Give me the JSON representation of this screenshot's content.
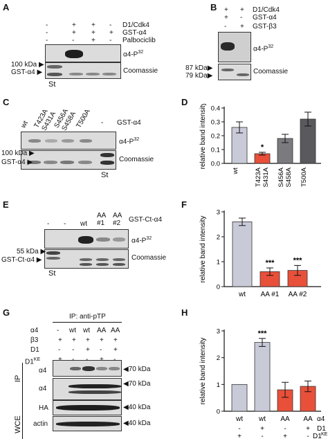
{
  "panels": {
    "A": {
      "letter": "A",
      "rows": [
        {
          "label": "D1/Cdk4",
          "marks": [
            "-",
            "+",
            "+",
            "-"
          ]
        },
        {
          "label": "GST-α4",
          "marks": [
            "-",
            "+",
            "+",
            "+"
          ]
        },
        {
          "label": "Palbociclib",
          "marks": [
            "-",
            "-",
            "+",
            "-"
          ]
        }
      ],
      "blot1_label": "α4-P",
      "blot1_sup": "32",
      "blot2_label": "Coomassie",
      "marker1": "100 kDa",
      "marker2": "GST-α4",
      "st": "St"
    },
    "B": {
      "letter": "B",
      "rows": [
        {
          "label": "D1/Cdk4",
          "marks": [
            "+",
            "+"
          ]
        },
        {
          "label": "GST-α4",
          "marks": [
            "+",
            "-"
          ]
        },
        {
          "label": "GST-β3",
          "marks": [
            "-",
            "+"
          ]
        }
      ],
      "blot1_label": "α4-P",
      "blot1_sup": "32",
      "blot2_label": "Coomassie",
      "marker1": "87 kDa",
      "marker2": "79 kDa"
    },
    "C": {
      "letter": "C",
      "lanes": [
        "wt",
        "T423A",
        "S431A",
        "S456A",
        "S458A",
        "T500A"
      ],
      "dash": "-",
      "row_label": "GST-α4",
      "blot1_label": "α4-P",
      "blot1_sup": "32",
      "blot2_label": "Coomassie",
      "marker1": "100 kDa",
      "marker2": "GST-α4",
      "st": "St"
    },
    "D": {
      "letter": "D",
      "significance": [
        "",
        "*",
        "",
        ""
      ]
    },
    "E": {
      "letter": "E",
      "lanes": [
        "-",
        "-",
        "wt",
        "AA",
        "AA"
      ],
      "lane_sub": [
        "",
        "",
        "",
        "#1",
        "#2"
      ],
      "row_label": "GST-Ct-α4",
      "blot1_label": "α4-P",
      "blot1_sup": "32",
      "blot2_label": "Coomassie",
      "marker1": "55 kDa",
      "marker2": "GST-Ct-α4",
      "st": "St"
    },
    "F": {
      "letter": "F",
      "significance": [
        "",
        "***",
        "***"
      ]
    },
    "G": {
      "letter": "G",
      "ip_title": "IP: anti-pTP",
      "rows": [
        {
          "label": "α4",
          "marks": [
            "-",
            "wt",
            "wt",
            "AA",
            "AA"
          ]
        },
        {
          "label": "β3",
          "marks": [
            "+",
            "+",
            "+",
            "+",
            "+"
          ]
        },
        {
          "label": "D1",
          "marks": [
            "-",
            "-",
            "+",
            "-",
            "+"
          ]
        },
        {
          "label": "D1KE",
          "marks": [
            "+",
            "-",
            "-",
            "+",
            "-"
          ]
        }
      ],
      "ip_label": "IP",
      "wce_label": "WCE",
      "blots": [
        {
          "label": "α4",
          "marker": "70 kDa"
        },
        {
          "label": "α4",
          "marker": "70 kDa"
        },
        {
          "label": "HA",
          "marker": "40 kDa"
        },
        {
          "label": "actin",
          "marker": "40 kDa"
        }
      ]
    },
    "H": {
      "letter": "H",
      "significance": [
        "",
        "***",
        "",
        ""
      ],
      "rows": [
        {
          "label": "α4",
          "marks": [
            "wt",
            "wt",
            "AA",
            "AA"
          ]
        },
        {
          "label": "D1",
          "marks": [
            "-",
            "+",
            "-",
            "+"
          ]
        },
        {
          "label": "D1KE",
          "marks": [
            "+",
            "-",
            "+",
            "-"
          ]
        }
      ]
    }
  },
  "chart_data": [
    {
      "panel": "D",
      "type": "bar",
      "categories": [
        "wt",
        "T423A S431A",
        "S456A S458A",
        "T500A"
      ],
      "values": [
        0.26,
        0.07,
        0.18,
        0.32
      ],
      "errors": [
        0.04,
        0.01,
        0.03,
        0.05
      ],
      "colors": [
        "#c9cad8",
        "#e8503a",
        "#7a7a7f",
        "#5a5a5e"
      ],
      "ylabel": "relative band intensity",
      "ylim": [
        0,
        0.4
      ],
      "yticks": [
        "0.0",
        "0.1",
        "0.2",
        "0.3",
        "0.4"
      ]
    },
    {
      "panel": "F",
      "type": "bar",
      "categories": [
        "wt",
        "AA #1",
        "AA #2"
      ],
      "values": [
        2.6,
        0.6,
        0.65
      ],
      "errors": [
        0.15,
        0.15,
        0.2
      ],
      "colors": [
        "#c9cad8",
        "#e8503a",
        "#e8503a"
      ],
      "ylabel": "relative band intensity",
      "ylim": [
        0,
        3
      ],
      "yticks": [
        "0",
        "1",
        "2",
        "3"
      ]
    },
    {
      "panel": "H",
      "type": "bar",
      "categories": [
        "wt",
        "wt",
        "AA",
        "AA"
      ],
      "values": [
        1.0,
        2.57,
        0.8,
        0.93
      ],
      "errors": [
        0,
        0.15,
        0.28,
        0.2
      ],
      "colors": [
        "#c9cad8",
        "#c9cad8",
        "#e8503a",
        "#e8503a"
      ],
      "ylabel": "relative band intensity",
      "ylim": [
        0,
        3
      ],
      "yticks": [
        "0",
        "1",
        "2",
        "3"
      ]
    }
  ],
  "colors": {
    "blot_bg": "#dcdcdc",
    "band_dark": "#333333",
    "band_faint": "#9a9a9a",
    "bar_wt": "#c9cad8",
    "bar_mut": "#e8503a"
  }
}
